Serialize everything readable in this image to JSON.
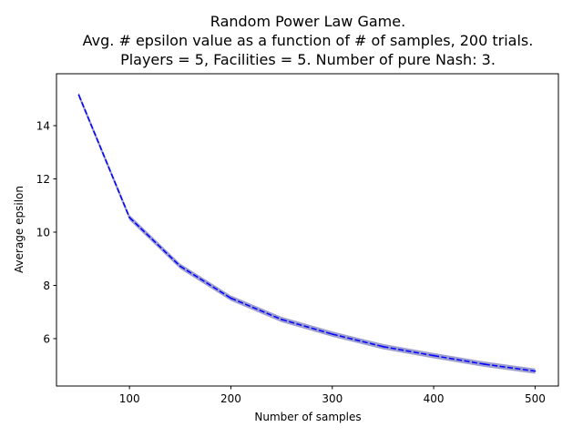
{
  "chart_data": {
    "type": "line",
    "title": [
      "Random Power Law Game.",
      "Avg. # epsilon value as a function of # of samples, 200 trials.",
      "Players = 5, Facilities = 5. Number of pure Nash: 3."
    ],
    "xlabel": "Number of samples",
    "ylabel": "Average epsilon",
    "xlim": [
      28,
      523
    ],
    "ylim": [
      4.22,
      15.95
    ],
    "xticks": [
      100,
      200,
      300,
      400,
      500
    ],
    "yticks": [
      6,
      8,
      10,
      12,
      14
    ],
    "grid": false,
    "x": [
      50,
      100,
      150,
      200,
      250,
      300,
      350,
      400,
      450,
      500
    ],
    "series": [
      {
        "values": [
          15.15,
          10.55,
          8.72,
          7.52,
          6.72,
          6.17,
          5.7,
          5.36,
          5.04,
          4.78
        ],
        "band": 0.1,
        "color": "#0000ff",
        "band_color": "#7f7fbf"
      }
    ]
  }
}
